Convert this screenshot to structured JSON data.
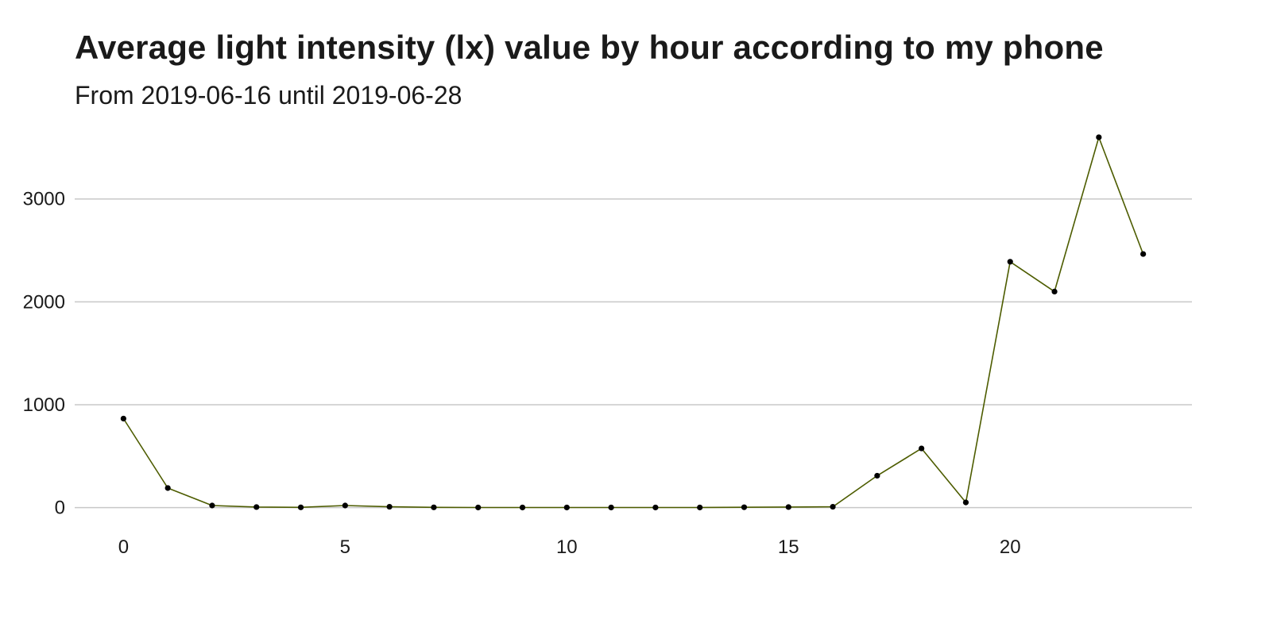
{
  "chart_data": {
    "type": "line",
    "title": "Average light intensity (lx) value by hour according to my phone",
    "subtitle": "From 2019-06-16 until 2019-06-28",
    "xlabel": "",
    "ylabel": "",
    "x": [
      0,
      1,
      2,
      3,
      4,
      5,
      6,
      7,
      8,
      9,
      10,
      11,
      12,
      13,
      14,
      15,
      16,
      17,
      18,
      19,
      20,
      21,
      22,
      23
    ],
    "series": [
      {
        "values": [
          865,
          190,
          20,
          5,
          2,
          20,
          8,
          2,
          1,
          1,
          1,
          1,
          1,
          1,
          3,
          5,
          8,
          310,
          575,
          50,
          2390,
          2100,
          3600,
          2465
        ],
        "color": "#4d5c00"
      }
    ],
    "xlim": [
      -1.1,
      24.1
    ],
    "ylim": [
      -250,
      3700
    ],
    "x_ticks": [
      0,
      5,
      10,
      15,
      20
    ],
    "y_ticks": [
      0,
      1000,
      2000,
      3000
    ],
    "x_tick_labels": [
      "0",
      "5",
      "10",
      "15",
      "20"
    ],
    "y_tick_labels": [
      "0",
      "1000",
      "2000",
      "3000"
    ],
    "grid": "horizontal-major",
    "legend": "none",
    "point_color": "#000000",
    "grid_color": "#c8c8c8"
  }
}
